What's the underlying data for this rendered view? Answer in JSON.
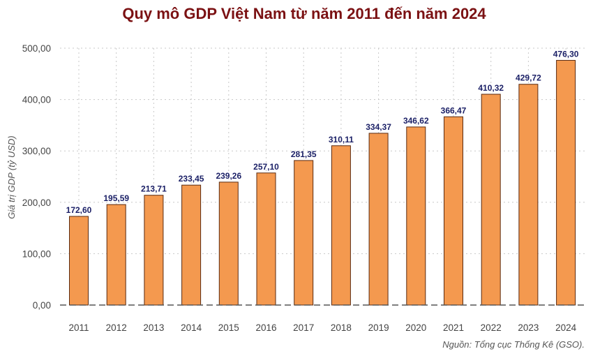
{
  "colors": {
    "bar_fill": "#f4994f",
    "bar_stroke": "#5a2a10",
    "title": "#7b1113",
    "data_label": "#1a1f66"
  },
  "chart_data": {
    "type": "bar",
    "title": "Quy mô GDP Việt Nam từ năm 2011 đến năm 2024",
    "ylabel": "Giá trị GDP (tỷ USD)",
    "xlabel": "",
    "source": "Nguồn: Tổng cục Thống Kê (GSO).",
    "categories": [
      "2011",
      "2012",
      "2013",
      "2014",
      "2015",
      "2016",
      "2017",
      "2018",
      "2019",
      "2020",
      "2021",
      "2022",
      "2023",
      "2024"
    ],
    "values": [
      172.6,
      195.59,
      213.71,
      233.45,
      239.26,
      257.1,
      281.35,
      310.11,
      334.37,
      346.62,
      366.47,
      410.32,
      429.72,
      476.3
    ],
    "value_labels": [
      "172,60",
      "195,59",
      "213,71",
      "233,45",
      "239,26",
      "257,10",
      "281,35",
      "310,11",
      "334,37",
      "346,62",
      "366,47",
      "410,32",
      "429,72",
      "476,30"
    ],
    "ylim": [
      0,
      500
    ],
    "yticks": [
      0,
      100,
      200,
      300,
      400,
      500
    ],
    "ytick_labels": [
      "0,00",
      "100,00",
      "200,00",
      "300,00",
      "400,00",
      "500,00"
    ],
    "grid": true,
    "legend": "none"
  }
}
